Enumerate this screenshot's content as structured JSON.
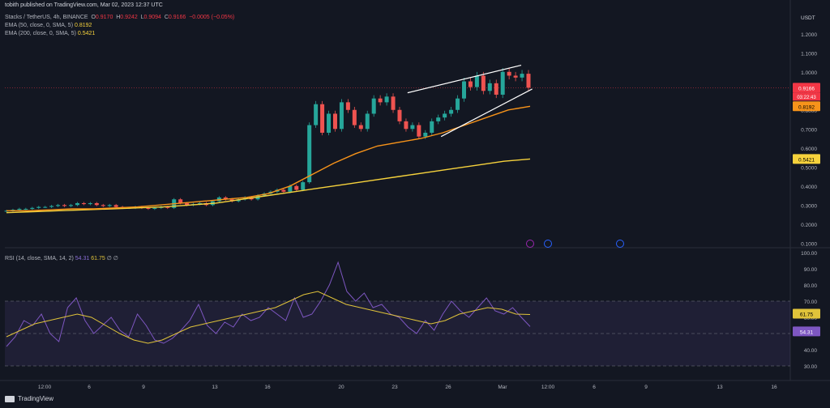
{
  "header": {
    "publisher": "tobith published on TradingView.com, Mar 02, 2023 12:37 UTC"
  },
  "symbol": {
    "name": "Stacks / TetherUS, 4h, BINANCE",
    "o_label": "O",
    "o": "0.9170",
    "h_label": "H",
    "h": "0.9242",
    "l_label": "L",
    "l": "0.9094",
    "c_label": "C",
    "c": "0.9166",
    "change": "−0.0005 (−0.05%)"
  },
  "indicators": {
    "ema50_label": "EMA (50, close, 0, SMA, 5)",
    "ema50_value": "0.8192",
    "ema200_label": "EMA (200, close, 0, SMA, 5)",
    "ema200_value": "0.5421",
    "rsi_label": "RSI (14, close, SMA, 14, 2)",
    "rsi_value": "54.31",
    "rsi_ma_value": "61.75",
    "rsi_tail": "∅ ∅"
  },
  "colors": {
    "bg": "#131722",
    "up": "#26a69a",
    "down": "#ef5350",
    "ema50": "#f7931a",
    "ema200": "#f6d23c",
    "rsi": "#7e57c2",
    "rsi_ma": "#e0c33a",
    "price_tag": "#f23645"
  },
  "brand": "TradingView",
  "chart_data": {
    "type": "candlestick",
    "currency": "USDT",
    "price_ticks": [
      "1.2000",
      "1.1000",
      "1.0000",
      "0.9000",
      "0.8000",
      "0.7000",
      "0.6000",
      "0.5000",
      "0.4000",
      "0.3000",
      "0.2000",
      "0.1000"
    ],
    "price_tags": {
      "last": "0.9166",
      "countdown": "03:22:43",
      "ema50": "0.8192",
      "ema200": "0.5421"
    },
    "rsi_ticks": [
      "100.00",
      "90.00",
      "80.00",
      "70.00",
      "60.00",
      "50.00",
      "40.00",
      "30.00"
    ],
    "rsi_tags": {
      "ma": "61.75",
      "rsi": "54.31"
    },
    "x_ticks": [
      "12:00",
      "6",
      "9",
      "13",
      "16",
      "20",
      "23",
      "26",
      "Mar",
      "12:00",
      "6",
      "9",
      "13",
      "16"
    ],
    "candles_close": [
      0.27,
      0.275,
      0.28,
      0.28,
      0.285,
      0.29,
      0.29,
      0.295,
      0.3,
      0.295,
      0.3,
      0.31,
      0.305,
      0.31,
      0.3,
      0.295,
      0.3,
      0.29,
      0.285,
      0.285,
      0.29,
      0.285,
      0.28,
      0.285,
      0.29,
      0.285,
      0.33,
      0.31,
      0.3,
      0.305,
      0.31,
      0.3,
      0.32,
      0.34,
      0.33,
      0.32,
      0.33,
      0.34,
      0.33,
      0.35,
      0.36,
      0.37,
      0.38,
      0.37,
      0.4,
      0.38,
      0.42,
      0.72,
      0.83,
      0.68,
      0.78,
      0.7,
      0.84,
      0.8,
      0.72,
      0.7,
      0.78,
      0.86,
      0.84,
      0.87,
      0.8,
      0.74,
      0.7,
      0.72,
      0.66,
      0.68,
      0.74,
      0.76,
      0.78,
      0.8,
      0.86,
      0.95,
      0.92,
      0.98,
      0.9,
      0.94,
      0.88,
      1.0,
      0.98,
      0.97,
      0.99,
      0.9166
    ],
    "ema50": [
      0.27,
      0.27,
      0.275,
      0.28,
      0.28,
      0.285,
      0.29,
      0.3,
      0.31,
      0.32,
      0.33,
      0.34,
      0.36,
      0.4,
      0.46,
      0.52,
      0.57,
      0.61,
      0.63,
      0.65,
      0.68,
      0.72,
      0.76,
      0.8,
      0.8192
    ],
    "ema200": [
      0.26,
      0.265,
      0.27,
      0.275,
      0.28,
      0.285,
      0.29,
      0.3,
      0.31,
      0.33,
      0.35,
      0.37,
      0.39,
      0.41,
      0.43,
      0.45,
      0.47,
      0.49,
      0.51,
      0.53,
      0.5421
    ],
    "wedge_upper": [
      [
        0.835,
        0.89
      ],
      [
        1.0,
        1.035
      ]
    ],
    "wedge_lower": [
      [
        0.64,
        0.66
      ],
      [
        1.0,
        0.91
      ]
    ],
    "rsi": [
      42,
      48,
      58,
      55,
      62,
      50,
      45,
      66,
      72,
      58,
      50,
      55,
      60,
      52,
      48,
      62,
      55,
      46,
      44,
      47,
      52,
      58,
      68,
      55,
      50,
      57,
      54,
      62,
      58,
      60,
      66,
      62,
      58,
      72,
      60,
      62,
      70,
      80,
      94,
      76,
      70,
      75,
      66,
      68,
      62,
      60,
      54,
      50,
      58,
      52,
      62,
      70,
      64,
      60,
      66,
      72,
      64,
      62,
      66,
      60,
      54.31
    ],
    "rsi_ma": [
      48,
      52,
      56,
      58,
      60,
      62,
      60,
      55,
      50,
      46,
      44,
      46,
      50,
      54,
      56,
      58,
      60,
      62,
      64,
      66,
      70,
      74,
      76,
      72,
      68,
      66,
      64,
      62,
      60,
      58,
      56,
      58,
      62,
      64,
      66,
      65,
      62,
      61.75
    ]
  }
}
